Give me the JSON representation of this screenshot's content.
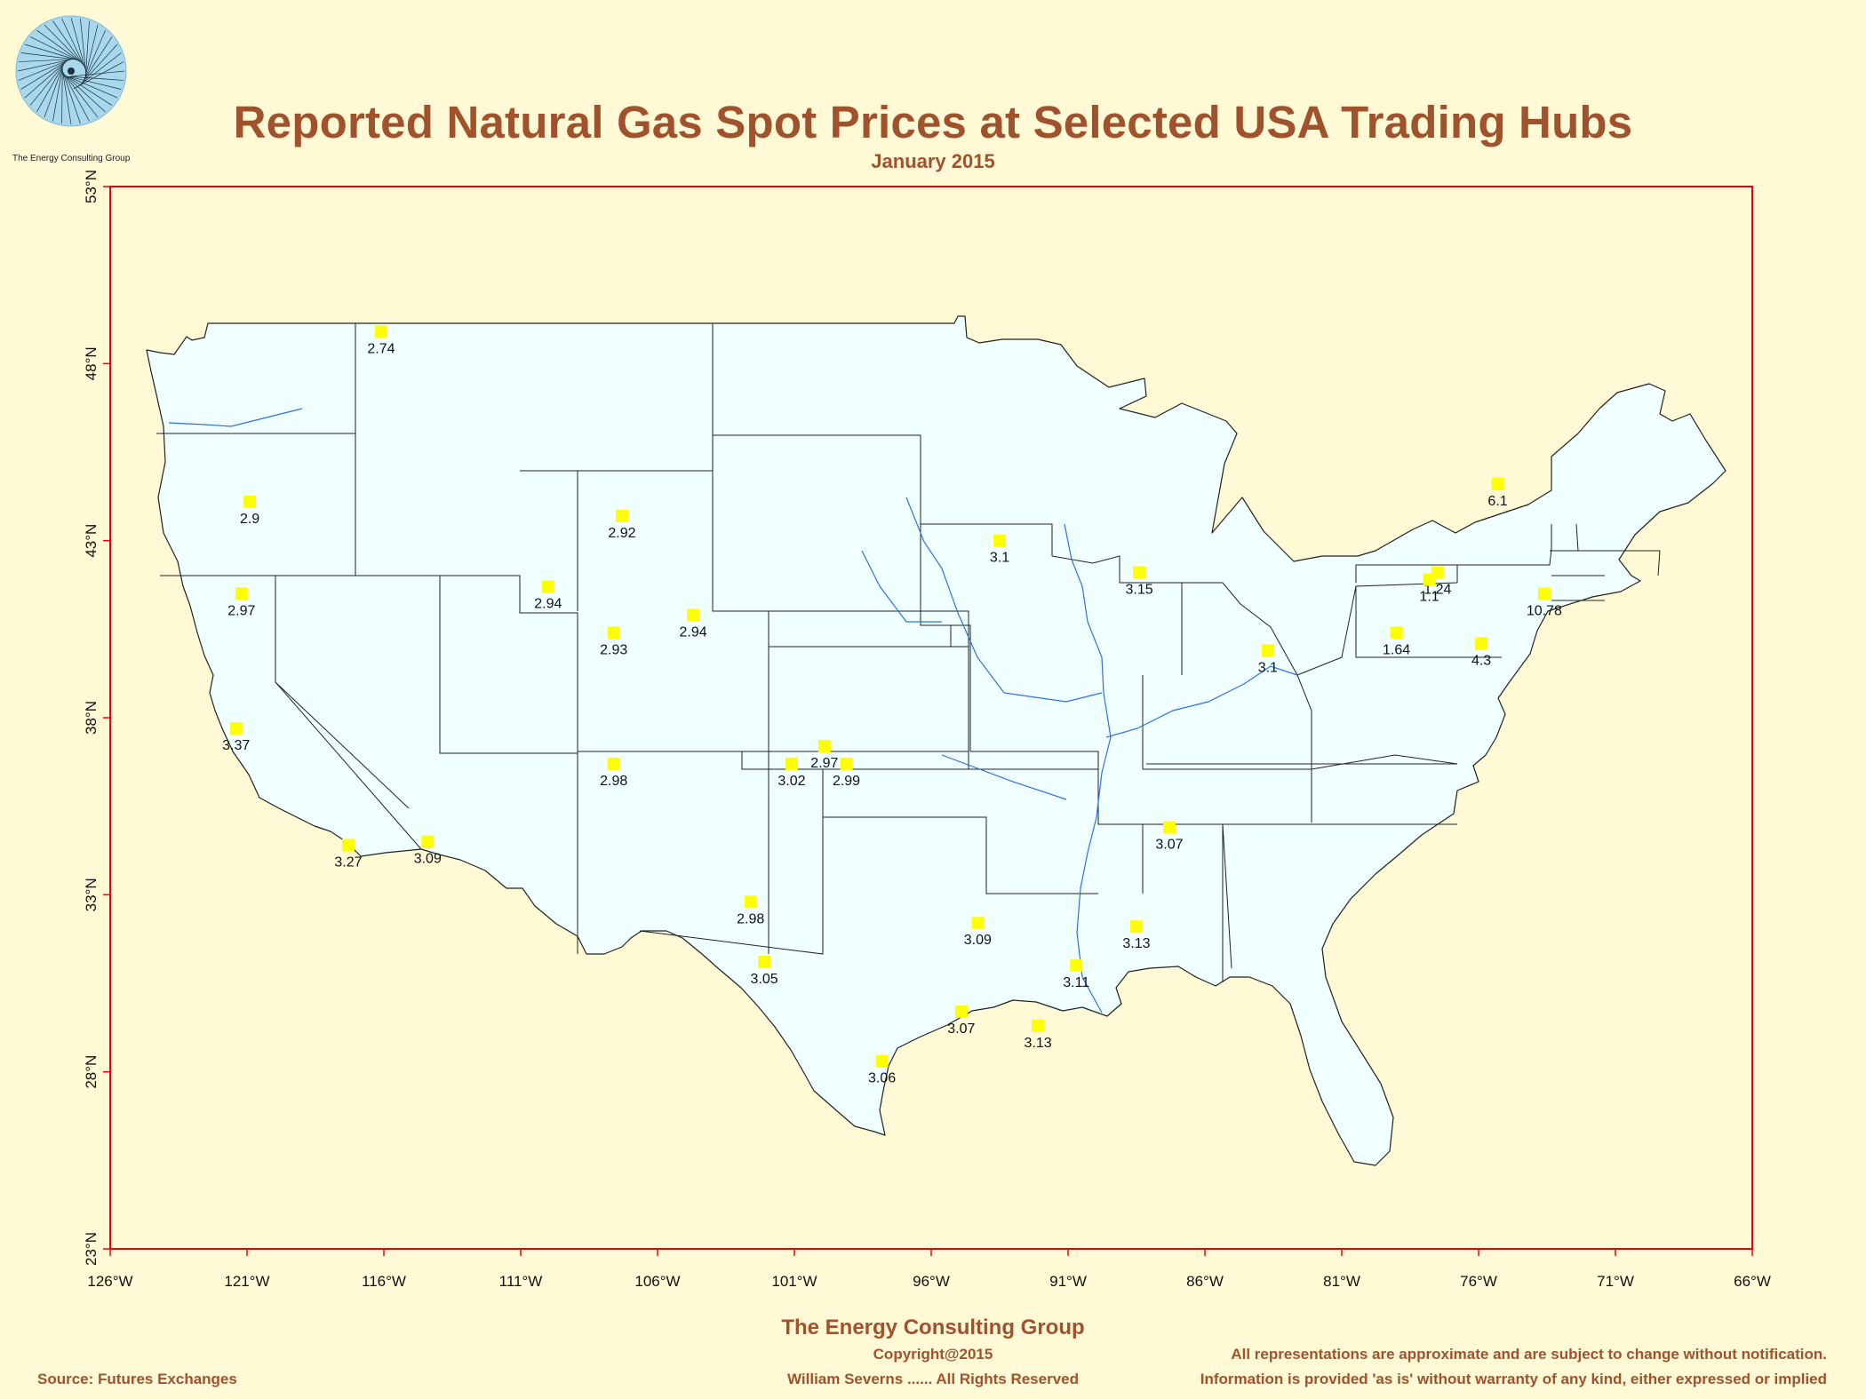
{
  "title": "Reported Natural Gas Spot Prices at Selected USA Trading Hubs",
  "subtitle": "January 2015",
  "logo": {
    "caption": "The Energy Consulting Group",
    "icon": "spiral-logo-icon"
  },
  "footer": {
    "company": "The Energy Consulting Group",
    "copyright": "Copyright@2015",
    "rights": "William Severns ...... All Rights Reserved",
    "source": "Source: Futures Exchanges",
    "disclaimer_1": "All representations are approximate and are subject to change without notification.",
    "disclaimer_2": "Information is provided 'as is' without warranty of any kind, either expressed or implied"
  },
  "colors": {
    "background": "#fff9d5",
    "frame": "#e8000a",
    "land": "#f0ffff",
    "marker": "#ffff00",
    "rivers": "#3070e0",
    "title": "#a0522d"
  },
  "chart_data": {
    "type": "scatter",
    "map": "contiguous-usa",
    "xlim": [
      -126,
      -66
    ],
    "ylim": [
      23,
      53
    ],
    "x_ticks": [
      {
        "value": -126,
        "label": "126°W"
      },
      {
        "value": -121,
        "label": "121°W"
      },
      {
        "value": -116,
        "label": "116°W"
      },
      {
        "value": -111,
        "label": "111°W"
      },
      {
        "value": -106,
        "label": "106°W"
      },
      {
        "value": -101,
        "label": "101°W"
      },
      {
        "value": -96,
        "label": "96°W"
      },
      {
        "value": -91,
        "label": "91°W"
      },
      {
        "value": -86,
        "label": "86°W"
      },
      {
        "value": -81,
        "label": "81°W"
      },
      {
        "value": -76,
        "label": "76°W"
      },
      {
        "value": -71,
        "label": "71°W"
      },
      {
        "value": -66,
        "label": "66°W"
      }
    ],
    "y_ticks": [
      {
        "value": 23,
        "label": "23°N"
      },
      {
        "value": 28,
        "label": "28°N"
      },
      {
        "value": 33,
        "label": "33°N"
      },
      {
        "value": 38,
        "label": "38°N"
      },
      {
        "value": 43,
        "label": "43°N"
      },
      {
        "value": 48,
        "label": "48°N"
      },
      {
        "value": 53,
        "label": "53°N"
      }
    ],
    "points": [
      {
        "lon": -116.1,
        "lat": 48.9,
        "label": "2.74"
      },
      {
        "lon": -120.9,
        "lat": 44.1,
        "label": "2.9"
      },
      {
        "lon": -121.2,
        "lat": 41.5,
        "label": "2.97"
      },
      {
        "lon": -121.4,
        "lat": 37.7,
        "label": "3.37"
      },
      {
        "lon": -117.3,
        "lat": 34.4,
        "label": "3.27"
      },
      {
        "lon": -114.4,
        "lat": 34.5,
        "label": "3.09"
      },
      {
        "lon": -107.3,
        "lat": 43.7,
        "label": "2.92"
      },
      {
        "lon": -110.0,
        "lat": 41.7,
        "label": "2.94"
      },
      {
        "lon": -104.7,
        "lat": 40.9,
        "label": "2.94"
      },
      {
        "lon": -107.6,
        "lat": 40.4,
        "label": "2.93"
      },
      {
        "lon": -107.6,
        "lat": 36.7,
        "label": "2.98"
      },
      {
        "lon": -101.1,
        "lat": 36.7,
        "label": "3.02"
      },
      {
        "lon": -99.9,
        "lat": 37.2,
        "label": "2.97"
      },
      {
        "lon": -99.1,
        "lat": 36.7,
        "label": "2.99"
      },
      {
        "lon": -102.6,
        "lat": 32.8,
        "label": "2.98"
      },
      {
        "lon": -102.1,
        "lat": 31.1,
        "label": "3.05"
      },
      {
        "lon": -97.8,
        "lat": 28.3,
        "label": "3.06"
      },
      {
        "lon": -94.3,
        "lat": 32.2,
        "label": "3.09"
      },
      {
        "lon": -94.9,
        "lat": 29.7,
        "label": "3.07"
      },
      {
        "lon": -92.1,
        "lat": 29.3,
        "label": "3.13"
      },
      {
        "lon": -90.7,
        "lat": 31.0,
        "label": "3.11"
      },
      {
        "lon": -88.5,
        "lat": 32.1,
        "label": "3.13"
      },
      {
        "lon": -87.3,
        "lat": 34.9,
        "label": "3.07"
      },
      {
        "lon": -93.5,
        "lat": 43.0,
        "label": "3.1"
      },
      {
        "lon": -88.4,
        "lat": 42.1,
        "label": "3.15"
      },
      {
        "lon": -83.7,
        "lat": 39.9,
        "label": "3.1"
      },
      {
        "lon": -79.0,
        "lat": 40.4,
        "label": "1.64"
      },
      {
        "lon": -77.5,
        "lat": 42.1,
        "label": "1.24"
      },
      {
        "lon": -77.8,
        "lat": 41.9,
        "label": "1.1"
      },
      {
        "lon": -75.3,
        "lat": 44.6,
        "label": "6.1"
      },
      {
        "lon": -73.6,
        "lat": 41.5,
        "label": "10.78"
      },
      {
        "lon": -75.9,
        "lat": 40.1,
        "label": "4.3"
      }
    ]
  }
}
